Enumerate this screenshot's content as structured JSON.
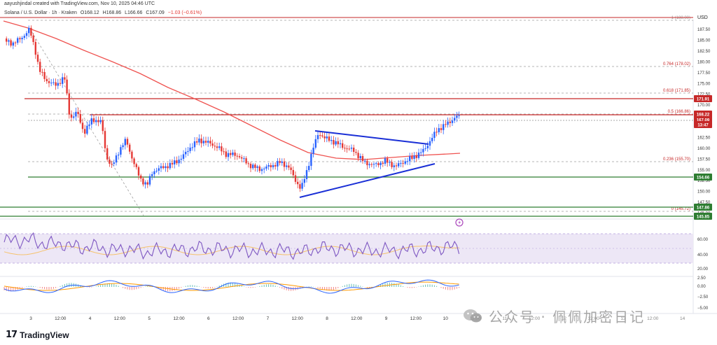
{
  "header": {
    "publisher_line": "aayushjindal created with TradingView.com, Nov 10, 2025 04:46 UTC",
    "symbol": "Solana / U.S. Dollar · 1h · Kraken",
    "open": "O168.12",
    "high": "H168.86",
    "low": "L166.66",
    "close": "C167.09",
    "change": "−1.03 (−0.61%)"
  },
  "currency_label": "USD",
  "price_axis": {
    "ticks": [
      "187.50",
      "185.00",
      "182.50",
      "180.00",
      "177.50",
      "175.00",
      "172.50",
      "170.00",
      "167.50",
      "165.00",
      "162.50",
      "160.00",
      "157.50",
      "155.00",
      "152.50",
      "150.00",
      "147.50",
      "145.00"
    ]
  },
  "price_badges": [
    {
      "label": "171.91",
      "color": "#c62828"
    },
    {
      "label": "168.22",
      "color": "#c62828"
    },
    {
      "label": "167.09",
      "color": "#c62828"
    },
    {
      "label": "13:47",
      "color": "#c62828"
    },
    {
      "label": "154.66",
      "color": "#2e7d32"
    },
    {
      "label": "147.86",
      "color": "#2e7d32"
    },
    {
      "label": "145.85",
      "color": "#2e7d32"
    }
  ],
  "fib_labels": [
    {
      "label": "1 (188.00)"
    },
    {
      "label": "0.764 (178.02)"
    },
    {
      "label": "0.618 (171.85)"
    },
    {
      "label": "0.5 (166.86)"
    },
    {
      "label": "0.236 (155.70)"
    },
    {
      "label": "0 (145.72)"
    }
  ],
  "rsi_axis": {
    "ticks": [
      "60.00",
      "40.00",
      "20.00"
    ]
  },
  "macd_axis": {
    "ticks": [
      "2.50",
      "0.00",
      "−2.50",
      "−5.00"
    ]
  },
  "time_axis": {
    "labels": [
      "3",
      "12:00",
      "4",
      "12:00",
      "5",
      "12:00",
      "6",
      "12:00",
      "7",
      "12:00",
      "8",
      "12:00",
      "9",
      "12:00",
      "10",
      "12:00",
      "11",
      "12:00",
      "12",
      "12:00",
      "13",
      "12:00",
      "14"
    ]
  },
  "footer": {
    "brand": "TradingView",
    "logo_mark": "17"
  },
  "watermark": {
    "text": "公众号 · 佩佩加密日记"
  },
  "colors": {
    "up": "#2962ff",
    "down": "#e53935",
    "ma": "#ef5350",
    "resistance": "#c62828",
    "support": "#2e7d32",
    "trendline": "#1a2fd6",
    "rsi_line": "#7e57c2",
    "rsi_band": "#ede7f6"
  },
  "icons": {
    "alert_marker": "lightning-alert-icon",
    "wechat": "wechat-icon"
  }
}
